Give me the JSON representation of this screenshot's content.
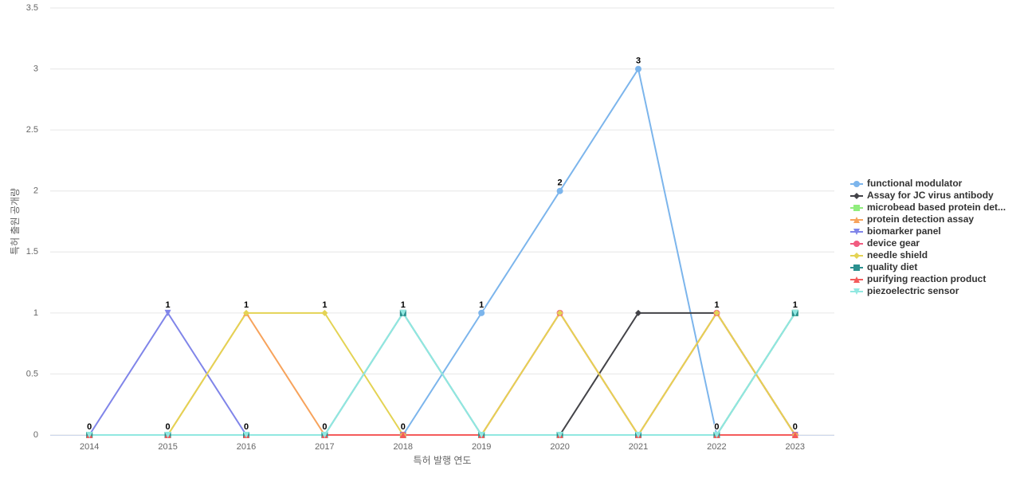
{
  "chart_data": {
    "type": "line",
    "x_label": "특허 발행 연도",
    "y_label": "특허 출원 공개량",
    "categories": [
      "2014",
      "2015",
      "2016",
      "2017",
      "2018",
      "2019",
      "2020",
      "2021",
      "2022",
      "2023"
    ],
    "ylim": [
      0,
      3.5
    ],
    "yticks": [
      0,
      0.5,
      1,
      1.5,
      2,
      2.5,
      3,
      3.5
    ],
    "grid": true,
    "legend": "right",
    "series": [
      {
        "name": "functional modulator",
        "color": "#7cb5ec",
        "marker": "circle",
        "values": [
          0,
          0,
          0,
          0,
          0,
          1,
          2,
          3,
          0,
          0
        ]
      },
      {
        "name": "Assay for JC virus antibody",
        "color": "#434348",
        "marker": "diamond",
        "values": [
          0,
          0,
          0,
          0,
          0,
          0,
          0,
          1,
          1,
          0
        ]
      },
      {
        "name": "microbead based protein det...",
        "color": "#90ed7d",
        "marker": "square",
        "values": [
          0,
          0,
          0,
          0,
          0,
          0,
          0,
          0,
          0,
          1
        ]
      },
      {
        "name": "protein detection assay",
        "color": "#f7a35c",
        "marker": "triangle",
        "values": [
          0,
          0,
          1,
          0,
          0,
          0,
          1,
          0,
          1,
          0
        ]
      },
      {
        "name": "biomarker panel",
        "color": "#8085e9",
        "marker": "triangle-down",
        "values": [
          0,
          1,
          0,
          0,
          0,
          0,
          0,
          0,
          0,
          0
        ]
      },
      {
        "name": "device gear",
        "color": "#f15c80",
        "marker": "circle",
        "values": [
          0,
          0,
          0,
          0,
          0,
          0,
          1,
          0,
          1,
          0
        ]
      },
      {
        "name": "needle shield",
        "color": "#e4d354",
        "marker": "diamond",
        "values": [
          0,
          0,
          1,
          1,
          0,
          0,
          1,
          0,
          1,
          0
        ]
      },
      {
        "name": "quality diet",
        "color": "#2b908f",
        "marker": "square",
        "values": [
          0,
          0,
          0,
          0,
          1,
          0,
          0,
          0,
          0,
          1
        ]
      },
      {
        "name": "purifying reaction product",
        "color": "#f45b5b",
        "marker": "triangle",
        "values": [
          0,
          0,
          0,
          0,
          0,
          0,
          0,
          0,
          0,
          0
        ]
      },
      {
        "name": "piezoelectric sensor",
        "color": "#91e8e1",
        "marker": "triangle-down",
        "values": [
          0,
          0,
          0,
          0,
          1,
          0,
          0,
          0,
          0,
          1
        ]
      }
    ]
  }
}
